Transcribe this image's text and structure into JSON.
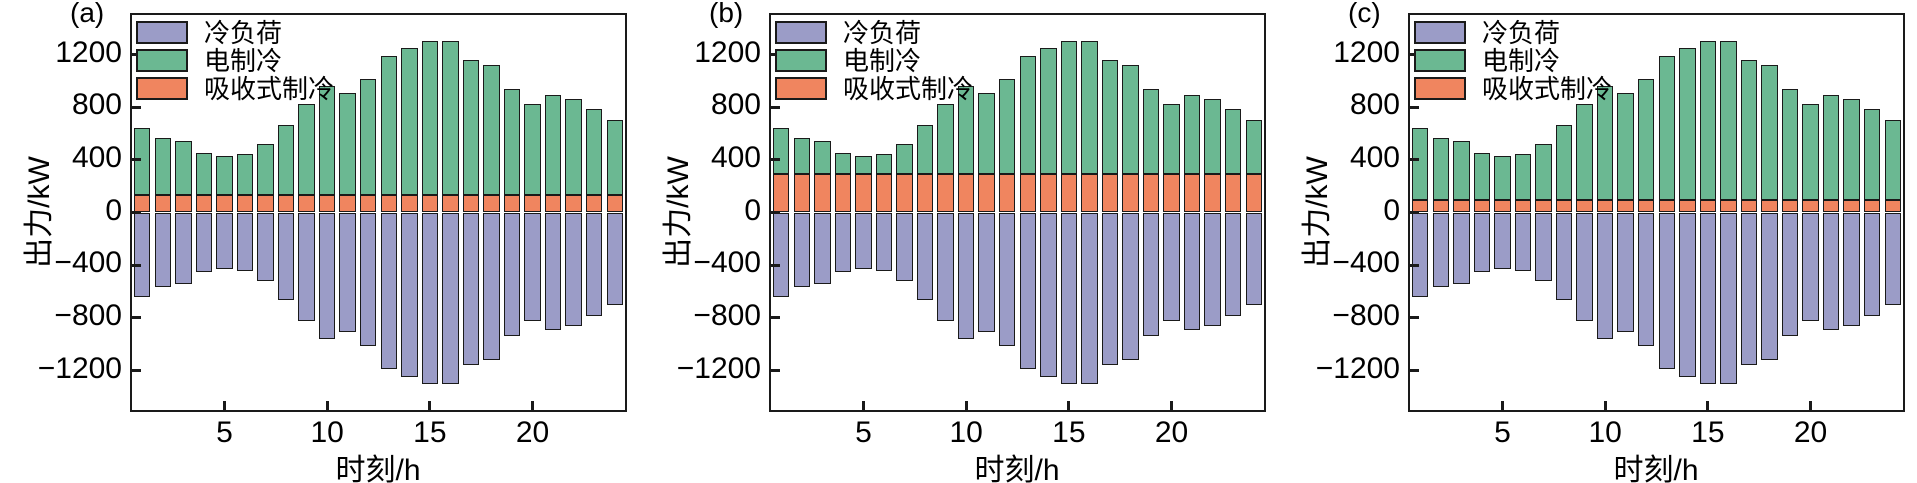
{
  "figure": {
    "background": "#ffffff",
    "axis_color": "#1a1a1a",
    "panels": [
      "(a)",
      "(b)",
      "(c)"
    ],
    "legend_entries": [
      "冷负荷",
      "电制冷",
      "吸收式制冷"
    ],
    "colors": {
      "cooling_load": "#9b9cc7",
      "electric_cooling": "#6bb892",
      "absorption_cooling": "#f0855f"
    }
  },
  "chart_data": [
    {
      "panel": "(a)",
      "type": "bar",
      "stacked": true,
      "xlabel": "时刻/h",
      "ylabel": "出力/kW",
      "xlim": [
        0.5,
        24.5
      ],
      "ylim": [
        -1500,
        1500
      ],
      "grid": false,
      "legend_position": "top-left",
      "x_ticks": [
        {
          "value": 5,
          "label": "5"
        },
        {
          "value": 10,
          "label": "10"
        },
        {
          "value": 15,
          "label": "15"
        },
        {
          "value": 20,
          "label": "20"
        }
      ],
      "y_ticks": [
        {
          "value": 1200,
          "label": "1200"
        },
        {
          "value": 800,
          "label": "800"
        },
        {
          "value": 400,
          "label": "400"
        },
        {
          "value": 0,
          "label": "0"
        },
        {
          "value": -400,
          "label": "−400"
        },
        {
          "value": -800,
          "label": "−800"
        },
        {
          "value": -1200,
          "label": "−1200"
        }
      ],
      "x": [
        1,
        2,
        3,
        4,
        5,
        6,
        7,
        8,
        9,
        10,
        11,
        12,
        13,
        14,
        15,
        16,
        17,
        18,
        19,
        20,
        21,
        22,
        23,
        24
      ],
      "series": [
        {
          "name": "冷负荷",
          "color": "#9b9cc7",
          "values": [
            -640,
            -565,
            -545,
            -455,
            -430,
            -445,
            -520,
            -665,
            -825,
            -960,
            -905,
            -1015,
            -1190,
            -1250,
            -1300,
            -1300,
            -1160,
            -1120,
            -935,
            -825,
            -890,
            -860,
            -785,
            -705
          ]
        },
        {
          "name": "电制冷",
          "color": "#6bb892",
          "values": [
            510,
            435,
            415,
            325,
            300,
            315,
            390,
            535,
            695,
            830,
            775,
            885,
            1060,
            1120,
            1170,
            1170,
            1030,
            990,
            805,
            695,
            760,
            730,
            655,
            575
          ]
        },
        {
          "name": "吸收式制冷",
          "color": "#f0855f",
          "values": [
            130,
            130,
            130,
            130,
            130,
            130,
            130,
            130,
            130,
            130,
            130,
            130,
            130,
            130,
            130,
            130,
            130,
            130,
            130,
            130,
            130,
            130,
            130,
            130
          ]
        }
      ]
    },
    {
      "panel": "(b)",
      "type": "bar",
      "stacked": true,
      "xlabel": "时刻/h",
      "ylabel": "出力/kW",
      "xlim": [
        0.5,
        24.5
      ],
      "ylim": [
        -1500,
        1500
      ],
      "grid": false,
      "legend_position": "top-left",
      "x_ticks": [
        {
          "value": 5,
          "label": "5"
        },
        {
          "value": 10,
          "label": "10"
        },
        {
          "value": 15,
          "label": "15"
        },
        {
          "value": 20,
          "label": "20"
        }
      ],
      "y_ticks": [
        {
          "value": 1200,
          "label": "1200"
        },
        {
          "value": 800,
          "label": "800"
        },
        {
          "value": 400,
          "label": "400"
        },
        {
          "value": 0,
          "label": "0"
        },
        {
          "value": -400,
          "label": "−400"
        },
        {
          "value": -800,
          "label": "−800"
        },
        {
          "value": -1200,
          "label": "−1200"
        }
      ],
      "x": [
        1,
        2,
        3,
        4,
        5,
        6,
        7,
        8,
        9,
        10,
        11,
        12,
        13,
        14,
        15,
        16,
        17,
        18,
        19,
        20,
        21,
        22,
        23,
        24
      ],
      "series": [
        {
          "name": "冷负荷",
          "color": "#9b9cc7",
          "values": [
            -640,
            -565,
            -545,
            -455,
            -430,
            -445,
            -520,
            -665,
            -825,
            -960,
            -905,
            -1015,
            -1190,
            -1250,
            -1300,
            -1300,
            -1160,
            -1120,
            -935,
            -825,
            -890,
            -860,
            -785,
            -705
          ]
        },
        {
          "name": "电制冷",
          "color": "#6bb892",
          "values": [
            350,
            275,
            255,
            165,
            140,
            155,
            230,
            375,
            535,
            670,
            615,
            725,
            900,
            960,
            1010,
            1010,
            870,
            830,
            645,
            535,
            600,
            570,
            495,
            415
          ]
        },
        {
          "name": "吸收式制冷",
          "color": "#f0855f",
          "values": [
            290,
            290,
            290,
            290,
            290,
            290,
            290,
            290,
            290,
            290,
            290,
            290,
            290,
            290,
            290,
            290,
            290,
            290,
            290,
            290,
            290,
            290,
            290,
            290
          ]
        }
      ]
    },
    {
      "panel": "(c)",
      "type": "bar",
      "stacked": true,
      "xlabel": "时刻/h",
      "ylabel": "出力/kW",
      "xlim": [
        0.5,
        24.5
      ],
      "ylim": [
        -1500,
        1500
      ],
      "grid": false,
      "legend_position": "top-left",
      "x_ticks": [
        {
          "value": 5,
          "label": "5"
        },
        {
          "value": 10,
          "label": "10"
        },
        {
          "value": 15,
          "label": "15"
        },
        {
          "value": 20,
          "label": "20"
        }
      ],
      "y_ticks": [
        {
          "value": 1200,
          "label": "1200"
        },
        {
          "value": 800,
          "label": "800"
        },
        {
          "value": 400,
          "label": "400"
        },
        {
          "value": 0,
          "label": "0"
        },
        {
          "value": -400,
          "label": "−400"
        },
        {
          "value": -800,
          "label": "−800"
        },
        {
          "value": -1200,
          "label": "−1200"
        }
      ],
      "x": [
        1,
        2,
        3,
        4,
        5,
        6,
        7,
        8,
        9,
        10,
        11,
        12,
        13,
        14,
        15,
        16,
        17,
        18,
        19,
        20,
        21,
        22,
        23,
        24
      ],
      "series": [
        {
          "name": "冷负荷",
          "color": "#9b9cc7",
          "values": [
            -640,
            -565,
            -545,
            -455,
            -430,
            -445,
            -520,
            -665,
            -825,
            -960,
            -905,
            -1015,
            -1190,
            -1250,
            -1300,
            -1300,
            -1160,
            -1120,
            -935,
            -825,
            -890,
            -860,
            -785,
            -705
          ]
        },
        {
          "name": "电制冷",
          "color": "#6bb892",
          "values": [
            545,
            470,
            450,
            360,
            335,
            350,
            425,
            570,
            730,
            865,
            810,
            920,
            1095,
            1155,
            1205,
            1205,
            1065,
            1025,
            840,
            730,
            795,
            765,
            690,
            610
          ]
        },
        {
          "name": "吸收式制冷",
          "color": "#f0855f",
          "values": [
            95,
            95,
            95,
            95,
            95,
            95,
            95,
            95,
            95,
            95,
            95,
            95,
            95,
            95,
            95,
            95,
            95,
            95,
            95,
            95,
            95,
            95,
            95,
            95
          ]
        }
      ]
    }
  ]
}
